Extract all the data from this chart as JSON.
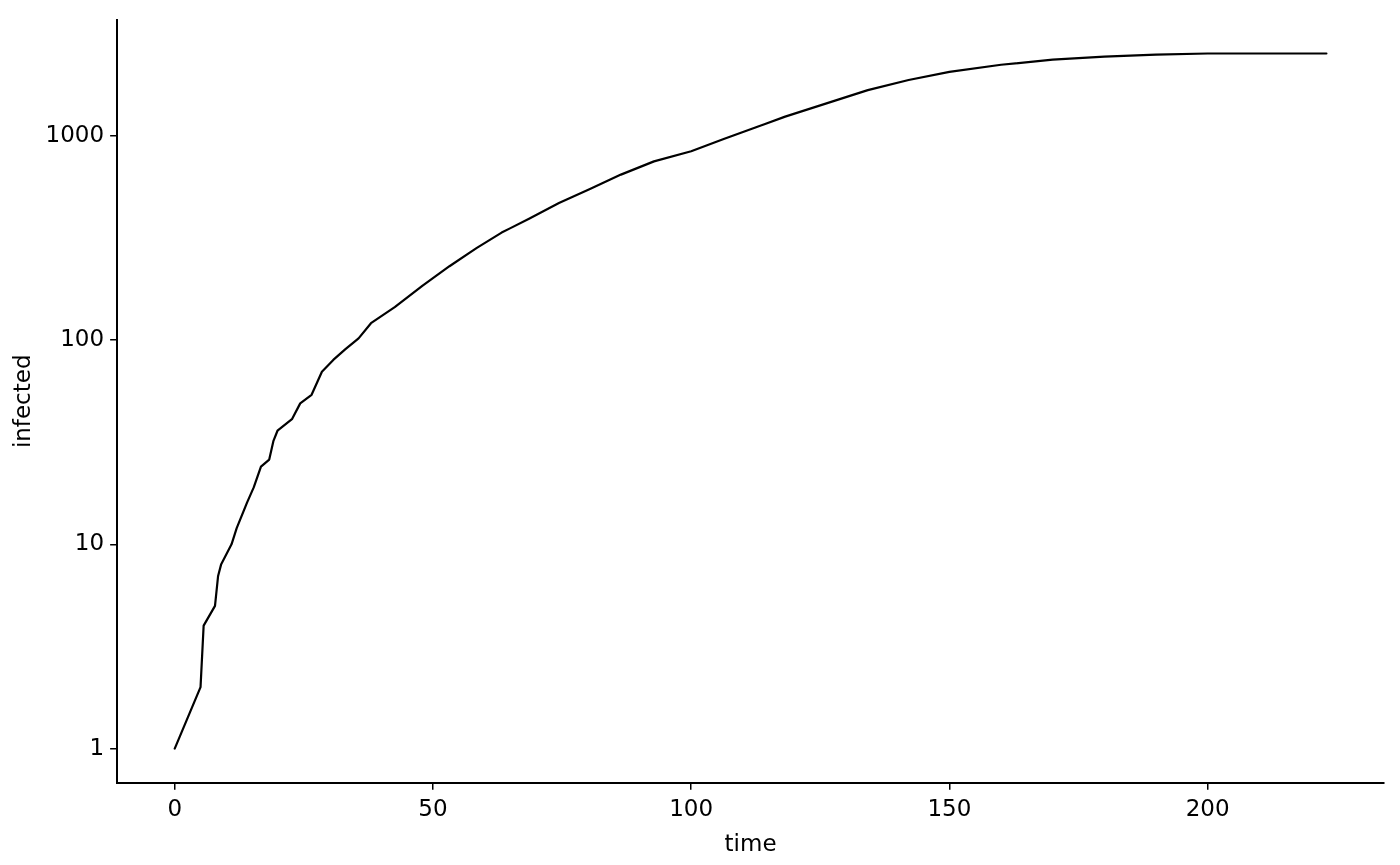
{
  "chart_data": {
    "type": "line",
    "xlabel": "time",
    "ylabel": "infected",
    "log": "y",
    "grid": false,
    "legend": false,
    "marker": "none",
    "line_style": "solid",
    "xlim": [
      -11.15,
      234.15
    ],
    "xticks": [
      0,
      50,
      100,
      150,
      200
    ],
    "ylim": [
      0.68,
      3700
    ],
    "yticks": [
      1,
      10,
      100,
      1000
    ],
    "series": [
      {
        "color": "#000000",
        "x": [
          0,
          5,
          5.6,
          7.8,
          8.4,
          9,
          11,
          12,
          14,
          15.3,
          16.7,
          18.3,
          19.1,
          19.9,
          22.7,
          24.3,
          26.5,
          28.5,
          30.7,
          33,
          35.6,
          38,
          42.6,
          48,
          53.2,
          58.5,
          63.3,
          68.7,
          74.4,
          80.4,
          86.4,
          92.8,
          100,
          106.3,
          112.3,
          118.2,
          126.2,
          134.2,
          142.1,
          150,
          160,
          170,
          180,
          190,
          200,
          223
        ],
        "values": [
          1,
          2,
          4,
          5,
          7,
          8,
          10,
          12,
          16,
          19,
          24,
          26,
          32,
          36,
          41,
          49,
          54,
          70,
          80,
          90,
          102,
          121,
          145,
          185,
          230,
          283,
          336,
          394,
          469,
          550,
          646,
          750,
          841,
          966,
          1095,
          1242,
          1442,
          1674,
          1876,
          2057,
          2229,
          2360,
          2444,
          2500,
          2530,
          2530
        ]
      }
    ]
  }
}
